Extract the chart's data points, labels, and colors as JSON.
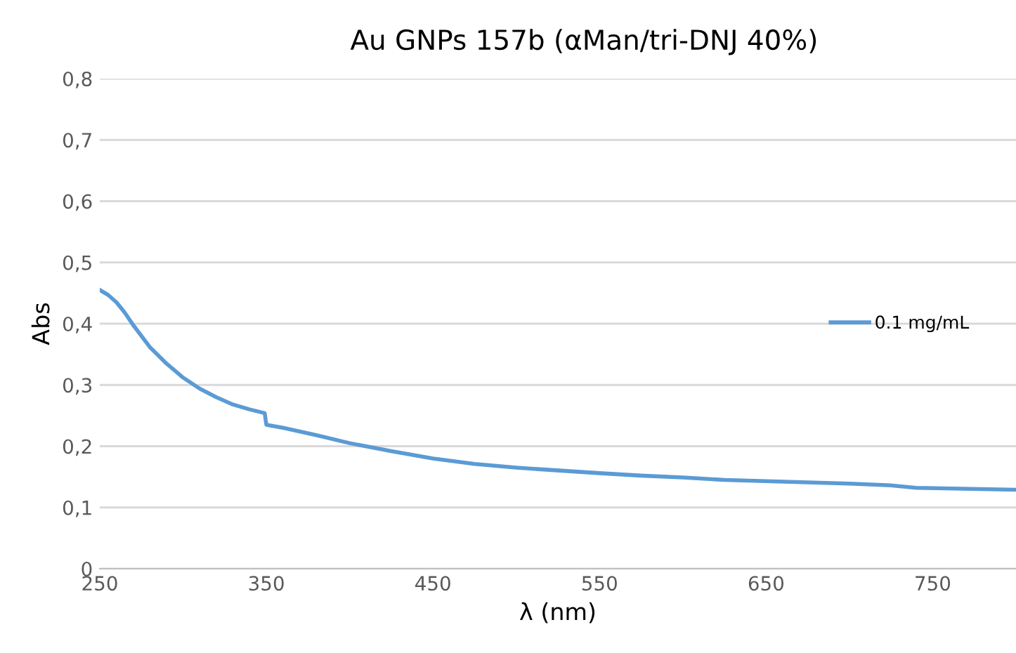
{
  "chart_data": {
    "type": "line",
    "title": "Au GNPs 157b (αMan/tri-DNJ 40%)",
    "xlabel": "λ (nm)",
    "ylabel": "Abs",
    "series": [
      {
        "name": "0.1 mg/mL",
        "color": "#5b9bd5",
        "x": [
          250,
          255,
          260,
          265,
          270,
          280,
          290,
          300,
          310,
          320,
          330,
          340,
          349,
          350,
          360,
          380,
          400,
          425,
          450,
          475,
          500,
          550,
          575,
          600,
          625,
          650,
          700,
          725,
          740,
          800
        ],
        "values": [
          0.455,
          0.447,
          0.435,
          0.418,
          0.398,
          0.362,
          0.335,
          0.312,
          0.294,
          0.28,
          0.268,
          0.26,
          0.254,
          0.235,
          0.23,
          0.218,
          0.205,
          0.192,
          0.18,
          0.171,
          0.165,
          0.156,
          0.152,
          0.149,
          0.145,
          0.143,
          0.139,
          0.136,
          0.132,
          0.129
        ]
      }
    ],
    "xlim": [
      250,
      800
    ],
    "xticks": [
      250,
      350,
      450,
      550,
      650,
      750
    ],
    "ylim": [
      0,
      0.8
    ],
    "yticks": [
      {
        "value": 0,
        "label": "0"
      },
      {
        "value": 0.1,
        "label": "0,1"
      },
      {
        "value": 0.2,
        "label": "0,2"
      },
      {
        "value": 0.3,
        "label": "0,3"
      },
      {
        "value": 0.4,
        "label": "0,4"
      },
      {
        "value": 0.5,
        "label": "0,5"
      },
      {
        "value": 0.6,
        "label": "0,6"
      },
      {
        "value": 0.7,
        "label": "0,7"
      },
      {
        "value": 0.8,
        "label": "0,8"
      }
    ],
    "grid": "y",
    "legend": "right",
    "marker": "none",
    "line_style": "solid"
  }
}
